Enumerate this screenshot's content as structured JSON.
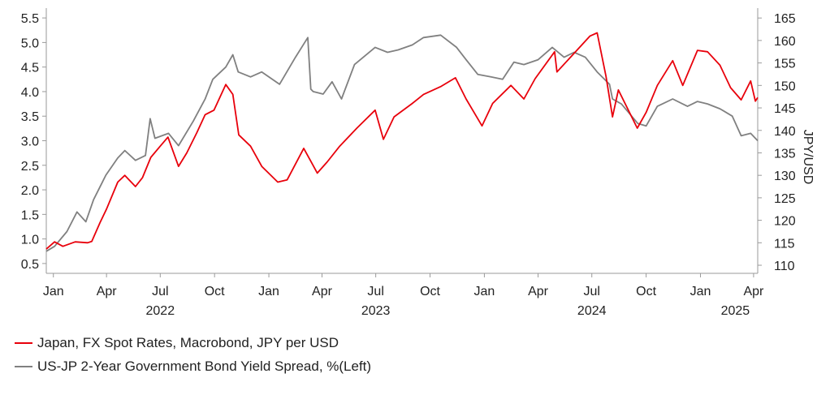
{
  "colors": {
    "jpy": "#e8000b",
    "spread": "#808080",
    "axis": "#9a9a9a"
  },
  "chart_data": {
    "type": "line",
    "title": "",
    "x_axis": {
      "range": [
        "2021-12-20",
        "2025-04-08"
      ],
      "month_ticks": [
        {
          "label": "Jan",
          "date": "2022-01-01"
        },
        {
          "label": "Apr",
          "date": "2022-04-01"
        },
        {
          "label": "Jul",
          "date": "2022-07-01"
        },
        {
          "label": "Oct",
          "date": "2022-10-01"
        },
        {
          "label": "Jan",
          "date": "2023-01-01"
        },
        {
          "label": "Apr",
          "date": "2023-04-01"
        },
        {
          "label": "Jul",
          "date": "2023-07-01"
        },
        {
          "label": "Oct",
          "date": "2023-10-01"
        },
        {
          "label": "Jan",
          "date": "2024-01-01"
        },
        {
          "label": "Apr",
          "date": "2024-04-01"
        },
        {
          "label": "Jul",
          "date": "2024-07-01"
        },
        {
          "label": "Oct",
          "date": "2024-10-01"
        },
        {
          "label": "Jan",
          "date": "2025-01-01"
        },
        {
          "label": "Apr",
          "date": "2025-04-01"
        }
      ],
      "year_labels": [
        {
          "label": "2022",
          "date": "2022-07-01"
        },
        {
          "label": "2023",
          "date": "2023-07-01"
        },
        {
          "label": "2024",
          "date": "2024-07-01"
        },
        {
          "label": "2025",
          "date": "2025-03-01"
        }
      ]
    },
    "y_left": {
      "range": [
        0.3,
        5.7
      ],
      "ticks": [
        "0.5",
        "1.0",
        "1.5",
        "2.0",
        "2.5",
        "3.0",
        "3.5",
        "4.0",
        "4.5",
        "5.0",
        "5.5"
      ]
    },
    "y_right": {
      "label": "JPY/USD",
      "range": [
        108.2,
        167.2
      ],
      "ticks": [
        "110",
        "115",
        "120",
        "125",
        "130",
        "135",
        "140",
        "145",
        "150",
        "155",
        "160",
        "165"
      ]
    },
    "series": [
      {
        "name": "Japan, FX Spot Rates, Macrobond, JPY per USD",
        "axis": "right",
        "color_key": "jpy",
        "points": [
          [
            "2021-12-20",
            113.6
          ],
          [
            "2022-01-03",
            115.2
          ],
          [
            "2022-01-17",
            114.2
          ],
          [
            "2022-02-07",
            115.2
          ],
          [
            "2022-02-28",
            115.0
          ],
          [
            "2022-03-07",
            115.3
          ],
          [
            "2022-03-21",
            119.5
          ],
          [
            "2022-04-01",
            122.5
          ],
          [
            "2022-04-20",
            128.5
          ],
          [
            "2022-05-02",
            130.0
          ],
          [
            "2022-05-20",
            127.5
          ],
          [
            "2022-06-01",
            129.5
          ],
          [
            "2022-06-15",
            134.0
          ],
          [
            "2022-07-01",
            136.5
          ],
          [
            "2022-07-14",
            138.5
          ],
          [
            "2022-08-01",
            132.0
          ],
          [
            "2022-08-15",
            135.0
          ],
          [
            "2022-09-01",
            139.5
          ],
          [
            "2022-09-15",
            143.5
          ],
          [
            "2022-09-30",
            144.5
          ],
          [
            "2022-10-20",
            150.2
          ],
          [
            "2022-11-01",
            148.0
          ],
          [
            "2022-11-11",
            139.0
          ],
          [
            "2022-12-01",
            136.5
          ],
          [
            "2022-12-20",
            132.0
          ],
          [
            "2023-01-16",
            128.5
          ],
          [
            "2023-02-01",
            129.0
          ],
          [
            "2023-03-01",
            136.0
          ],
          [
            "2023-03-24",
            130.5
          ],
          [
            "2023-04-10",
            133.0
          ],
          [
            "2023-05-01",
            136.5
          ],
          [
            "2023-05-30",
            140.5
          ],
          [
            "2023-06-30",
            144.5
          ],
          [
            "2023-07-14",
            138.0
          ],
          [
            "2023-08-01",
            143.0
          ],
          [
            "2023-09-01",
            146.0
          ],
          [
            "2023-09-20",
            148.0
          ],
          [
            "2023-10-20",
            149.8
          ],
          [
            "2023-11-13",
            151.7
          ],
          [
            "2023-12-01",
            147.0
          ],
          [
            "2023-12-28",
            141.0
          ],
          [
            "2024-01-15",
            146.0
          ],
          [
            "2024-02-15",
            150.0
          ],
          [
            "2024-03-08",
            147.0
          ],
          [
            "2024-03-27",
            151.5
          ],
          [
            "2024-04-29",
            157.5
          ],
          [
            "2024-05-03",
            153.0
          ],
          [
            "2024-05-31",
            157.0
          ],
          [
            "2024-06-28",
            161.0
          ],
          [
            "2024-07-10",
            161.7
          ],
          [
            "2024-07-25",
            152.0
          ],
          [
            "2024-08-05",
            143.0
          ],
          [
            "2024-08-15",
            149.0
          ],
          [
            "2024-09-16",
            140.5
          ],
          [
            "2024-10-01",
            144.0
          ],
          [
            "2024-10-20",
            150.0
          ],
          [
            "2024-11-15",
            155.5
          ],
          [
            "2024-12-02",
            150.0
          ],
          [
            "2024-12-27",
            157.8
          ],
          [
            "2025-01-13",
            157.5
          ],
          [
            "2025-02-03",
            154.5
          ],
          [
            "2025-02-21",
            149.5
          ],
          [
            "2025-03-11",
            146.8
          ],
          [
            "2025-03-27",
            151.0
          ],
          [
            "2025-04-04",
            146.5
          ],
          [
            "2025-04-08",
            147.3
          ]
        ]
      },
      {
        "name": "US-JP 2-Year Government Bond Yield Spread, %(Left)",
        "axis": "left",
        "color_key": "spread",
        "points": [
          [
            "2021-12-20",
            0.75
          ],
          [
            "2022-01-03",
            0.85
          ],
          [
            "2022-01-24",
            1.15
          ],
          [
            "2022-02-10",
            1.55
          ],
          [
            "2022-02-25",
            1.35
          ],
          [
            "2022-03-10",
            1.8
          ],
          [
            "2022-03-31",
            2.3
          ],
          [
            "2022-04-20",
            2.65
          ],
          [
            "2022-05-02",
            2.8
          ],
          [
            "2022-05-20",
            2.6
          ],
          [
            "2022-06-06",
            2.7
          ],
          [
            "2022-06-14",
            3.45
          ],
          [
            "2022-06-22",
            3.05
          ],
          [
            "2022-07-15",
            3.15
          ],
          [
            "2022-08-01",
            2.9
          ],
          [
            "2022-08-26",
            3.4
          ],
          [
            "2022-09-15",
            3.85
          ],
          [
            "2022-09-28",
            4.25
          ],
          [
            "2022-10-20",
            4.5
          ],
          [
            "2022-11-01",
            4.75
          ],
          [
            "2022-11-10",
            4.4
          ],
          [
            "2022-12-01",
            4.3
          ],
          [
            "2022-12-20",
            4.4
          ],
          [
            "2023-01-19",
            4.15
          ],
          [
            "2023-02-15",
            4.7
          ],
          [
            "2023-03-08",
            5.1
          ],
          [
            "2023-03-13",
            4.05
          ],
          [
            "2023-03-17",
            4.0
          ],
          [
            "2023-04-03",
            3.95
          ],
          [
            "2023-04-18",
            4.2
          ],
          [
            "2023-05-04",
            3.85
          ],
          [
            "2023-05-26",
            4.55
          ],
          [
            "2023-06-30",
            4.9
          ],
          [
            "2023-07-21",
            4.8
          ],
          [
            "2023-08-08",
            4.85
          ],
          [
            "2023-09-01",
            4.95
          ],
          [
            "2023-09-20",
            5.1
          ],
          [
            "2023-10-19",
            5.15
          ],
          [
            "2023-11-15",
            4.9
          ],
          [
            "2023-12-01",
            4.65
          ],
          [
            "2023-12-21",
            4.35
          ],
          [
            "2024-01-12",
            4.3
          ],
          [
            "2024-02-01",
            4.25
          ],
          [
            "2024-02-20",
            4.6
          ],
          [
            "2024-03-08",
            4.55
          ],
          [
            "2024-04-01",
            4.65
          ],
          [
            "2024-04-25",
            4.9
          ],
          [
            "2024-05-15",
            4.7
          ],
          [
            "2024-06-01",
            4.8
          ],
          [
            "2024-06-20",
            4.7
          ],
          [
            "2024-07-10",
            4.4
          ],
          [
            "2024-07-31",
            4.15
          ],
          [
            "2024-08-05",
            3.85
          ],
          [
            "2024-08-20",
            3.75
          ],
          [
            "2024-09-17",
            3.35
          ],
          [
            "2024-10-01",
            3.3
          ],
          [
            "2024-10-20",
            3.7
          ],
          [
            "2024-11-15",
            3.85
          ],
          [
            "2024-12-10",
            3.7
          ],
          [
            "2024-12-27",
            3.8
          ],
          [
            "2025-01-13",
            3.75
          ],
          [
            "2025-02-03",
            3.65
          ],
          [
            "2025-02-24",
            3.5
          ],
          [
            "2025-03-11",
            3.1
          ],
          [
            "2025-03-27",
            3.15
          ],
          [
            "2025-04-08",
            3.0
          ]
        ]
      }
    ]
  }
}
